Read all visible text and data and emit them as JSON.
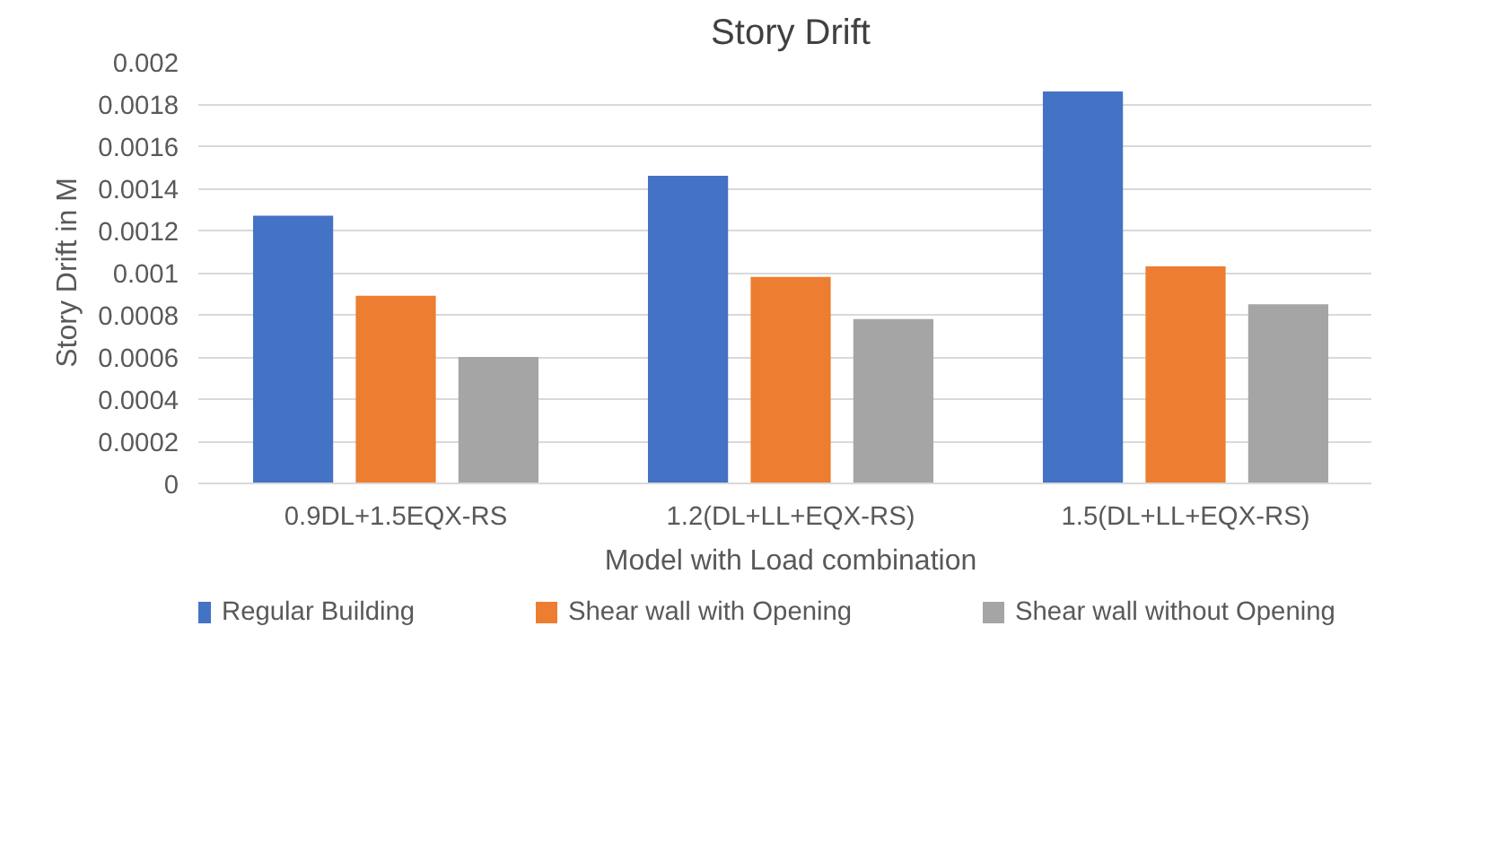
{
  "chart_data": {
    "type": "bar",
    "title": "Story Drift",
    "xlabel": "Model with Load combination",
    "ylabel": "Story Drift in M",
    "categories": [
      "0.9DL+1.5EQX-RS",
      "1.2(DL+LL+EQX-RS)",
      "1.5(DL+LL+EQX-RS)"
    ],
    "series": [
      {
        "name": "Regular Building",
        "color": "#4472c4",
        "values": [
          0.00127,
          0.00146,
          0.00186
        ]
      },
      {
        "name": "Shear wall with Opening",
        "color": "#ed7d31",
        "values": [
          0.00089,
          0.00098,
          0.00103
        ]
      },
      {
        "name": "Shear wall without Opening",
        "color": "#a5a5a5",
        "values": [
          0.0006,
          0.00078,
          0.00085
        ]
      }
    ],
    "ylim": [
      0,
      0.002
    ],
    "yticks": [
      0,
      0.0002,
      0.0004,
      0.0006,
      0.0008,
      0.001,
      0.0012,
      0.0014,
      0.0016,
      0.0018,
      0.002
    ],
    "grid": "y",
    "legend": "bottom"
  }
}
